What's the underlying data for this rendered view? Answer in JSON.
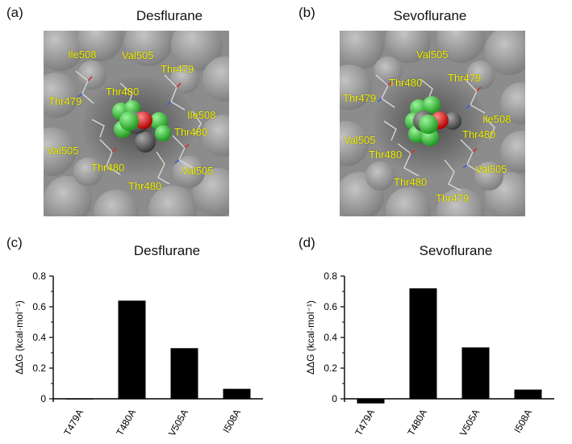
{
  "panels": {
    "a": {
      "label": "(a)",
      "title": "Desflurane"
    },
    "b": {
      "label": "(b)",
      "title": "Sevoflurane"
    },
    "c": {
      "label": "(c)",
      "title": "Desflurane"
    },
    "d": {
      "label": "(d)",
      "title": "Sevoflurane"
    }
  },
  "residues_a": [
    "Ile508",
    "Val505",
    "Thr479",
    "Thr480",
    "Thr479",
    "Ile508",
    "Thr480",
    "Val505",
    "Thr480",
    "Val505",
    "Thr480"
  ],
  "residues_b": [
    "Val505",
    "Thr480",
    "Thr479",
    "Thr479",
    "Ile508",
    "Val505",
    "Thr480",
    "Thr480",
    "Val505",
    "Thr480",
    "Thr479"
  ],
  "colors": {
    "residue_label": "#f4f400",
    "bar": "#000000",
    "fluorine": "#3fd23f",
    "oxygen": "#e01010",
    "carbon": "#5a5a5a"
  },
  "chart_data": [
    {
      "type": "bar",
      "title": "Desflurane",
      "categories": [
        "T479A",
        "T480A",
        "V505A",
        "I508A"
      ],
      "values": [
        0.0,
        0.64,
        0.33,
        0.065
      ],
      "ylabel": "ΔΔG (kcal·mol⁻¹)",
      "yticks": [
        "0",
        "0.2",
        "0.4",
        "0.6",
        "0.8"
      ],
      "ylim": [
        0,
        0.8
      ]
    },
    {
      "type": "bar",
      "title": "Sevoflurane",
      "categories": [
        "T479A",
        "T480A",
        "V505A",
        "I508A"
      ],
      "values": [
        -0.03,
        0.72,
        0.335,
        0.06
      ],
      "ylabel": "ΔΔG (kcal·mol⁻¹)",
      "yticks": [
        "0",
        "0.2",
        "0.4",
        "0.6",
        "0.8"
      ],
      "ylim": [
        0,
        0.8
      ]
    }
  ]
}
